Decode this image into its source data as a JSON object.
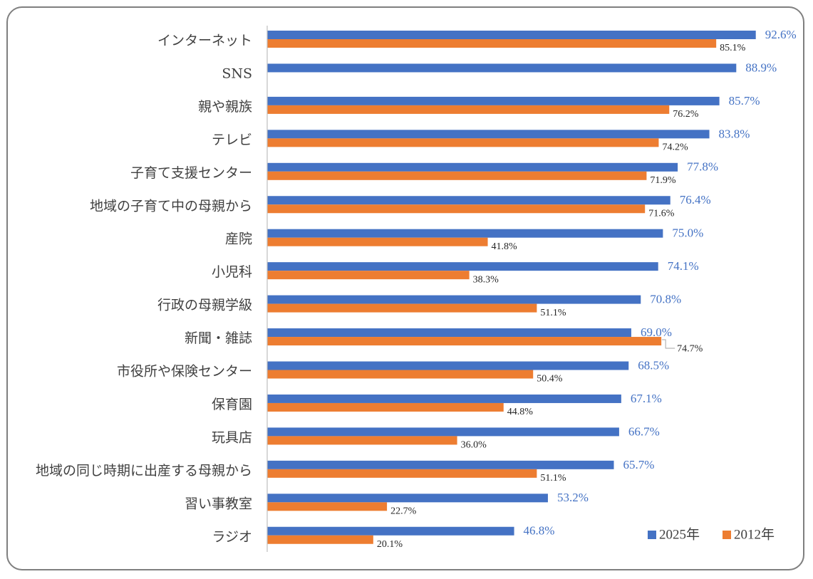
{
  "chart_data": {
    "type": "bar",
    "orientation": "horizontal",
    "categories": [
      "インターネット",
      "SNS",
      "親や親族",
      "テレビ",
      "子育て支援センター",
      "地域の子育て中の母親から",
      "産院",
      "小児科",
      "行政の母親学級",
      "新聞・雑誌",
      "市役所や保険センター",
      "保育園",
      "玩具店",
      "地域の同じ時期に出産する母親から",
      "習い事教室",
      "ラジオ"
    ],
    "series": [
      {
        "name": "2025年",
        "color": "#4472c4",
        "values": [
          92.6,
          88.9,
          85.7,
          83.8,
          77.8,
          76.4,
          75.0,
          74.1,
          70.8,
          69.0,
          68.5,
          67.1,
          66.7,
          65.7,
          53.2,
          46.8
        ],
        "labels": [
          "92.6%",
          "88.9%",
          "85.7%",
          "83.8%",
          "77.8%",
          "76.4%",
          "75.0%",
          "74.1%",
          "70.8%",
          "69.0%",
          "68.5%",
          "67.1%",
          "66.7%",
          "65.7%",
          "53.2%",
          "46.8%"
        ]
      },
      {
        "name": "2012年",
        "color": "#ed7d31",
        "values": [
          85.1,
          null,
          76.2,
          74.2,
          71.9,
          71.6,
          41.8,
          38.3,
          51.1,
          74.7,
          50.4,
          44.8,
          36.0,
          51.1,
          22.7,
          20.1
        ],
        "labels": [
          "85.1%",
          "",
          "76.2%",
          "74.2%",
          "71.9%",
          "71.6%",
          "41.8%",
          "38.3%",
          "51.1%",
          "74.7%",
          "50.4%",
          "44.8%",
          "36.0%",
          "51.1%",
          "22.7%",
          "20.1%"
        ]
      }
    ],
    "title": "",
    "xlabel": "",
    "ylabel": "",
    "xlim": [
      0,
      100
    ],
    "grid": false,
    "legend_position": "bottom-right"
  }
}
